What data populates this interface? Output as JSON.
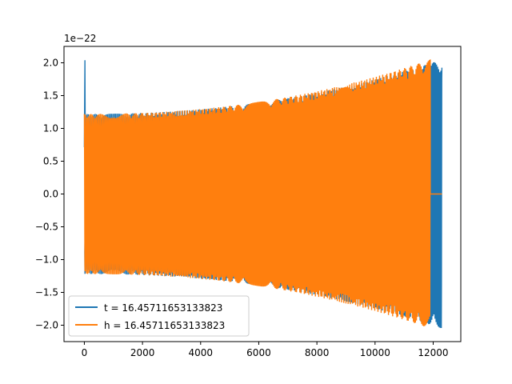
{
  "chart_data": {
    "type": "line",
    "title": "",
    "xlabel": "",
    "ylabel": "",
    "y_offset_label": "1e−22",
    "y_scale_factor": 1e-22,
    "xlim": [
      -700,
      12950
    ],
    "ylim": [
      -2.25,
      2.25
    ],
    "x_ticks": [
      0,
      2000,
      4000,
      6000,
      8000,
      10000,
      12000
    ],
    "x_tick_labels": [
      "0",
      "2000",
      "4000",
      "6000",
      "8000",
      "10000",
      "12000"
    ],
    "y_ticks": [
      -2.0,
      -1.5,
      -1.0,
      -0.5,
      0.0,
      0.5,
      1.0,
      1.5,
      2.0
    ],
    "y_tick_labels": [
      "−2.0",
      "−1.5",
      "−1.0",
      "−0.5",
      "0.0",
      "0.5",
      "1.0",
      "1.5",
      "2.0"
    ],
    "grid": false,
    "legend_position": "lower-left",
    "series": [
      {
        "name": "t = 16.45711653133823",
        "color": "#1f77b4",
        "kind": "chirp",
        "x_start": 0,
        "x_end": 12300,
        "initial_spike": 2.04,
        "amp_start": 1.22,
        "amp_end": 2.05
      },
      {
        "name": "h = 16.45711653133823",
        "color": "#ff7f0e",
        "kind": "chirp",
        "x_start": 0,
        "x_end": 11900,
        "amp_start": 1.22,
        "amp_end": 2.05,
        "tail_start": 11900,
        "tail_end": 12300,
        "tail_value": 0.0
      }
    ]
  }
}
